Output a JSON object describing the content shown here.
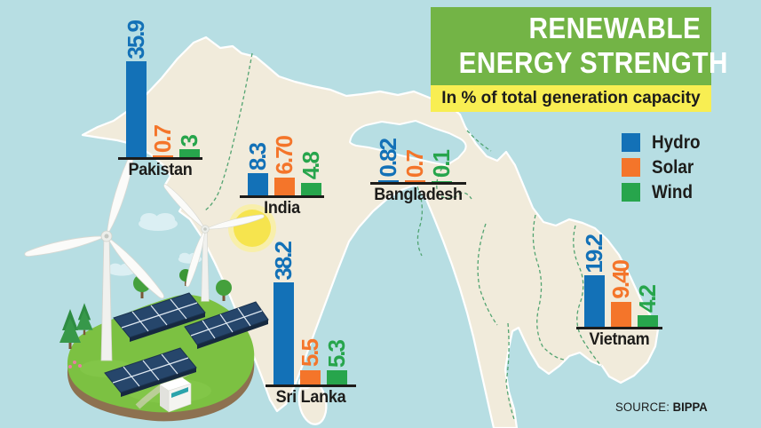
{
  "title": {
    "line1": "RENEWABLE",
    "line2": "ENERGY STRENGTH"
  },
  "subtitle": "In % of total generation capacity",
  "legend": {
    "items": [
      {
        "key": "hydro",
        "label": "Hydro",
        "color": "#1371b7"
      },
      {
        "key": "solar",
        "label": "Solar",
        "color": "#f4752a"
      },
      {
        "key": "wind",
        "label": "Wind",
        "color": "#27a54c"
      }
    ]
  },
  "source": {
    "label": "SOURCE:",
    "value": "BIPPA"
  },
  "colors": {
    "background": "#b7dee3",
    "land": "#f1ebdb",
    "banner_green": "#73b446",
    "strip_yellow": "#f8ee52",
    "hydro_blue": "#1371b7",
    "solar_orange": "#f4752a",
    "wind_green": "#27a54c",
    "text_dark": "#1d1c1a"
  },
  "chart_data": {
    "type": "bar",
    "title": "RENEWABLE ENERGY STRENGTH",
    "subtitle": "In % of total generation capacity",
    "unit": "% of total generation capacity",
    "categories": [
      "Pakistan",
      "India",
      "Bangladesh",
      "Sri Lanka",
      "Vietnam"
    ],
    "series": [
      {
        "name": "Hydro",
        "color": "#1371b7",
        "values": [
          35.9,
          8.3,
          0.82,
          38.2,
          19.2
        ],
        "labels": [
          "35.9",
          "8.3",
          "0.82",
          "38.2",
          "19.2"
        ]
      },
      {
        "name": "Solar",
        "color": "#f4752a",
        "values": [
          0.7,
          6.7,
          0.7,
          5.5,
          9.4
        ],
        "labels": [
          "0.7",
          "6.70",
          "0.7",
          "5.5",
          "9.40"
        ]
      },
      {
        "name": "Wind",
        "color": "#27a54c",
        "values": [
          3,
          4.8,
          0.1,
          5.3,
          4.2
        ],
        "labels": [
          "3",
          "4.8",
          "0.1",
          "5.3",
          "4.2"
        ]
      }
    ],
    "legend_position": "right",
    "grid": false,
    "note": "grouped bar charts placed over a map of South and Southeast Asia",
    "source": "BIPPA"
  }
}
